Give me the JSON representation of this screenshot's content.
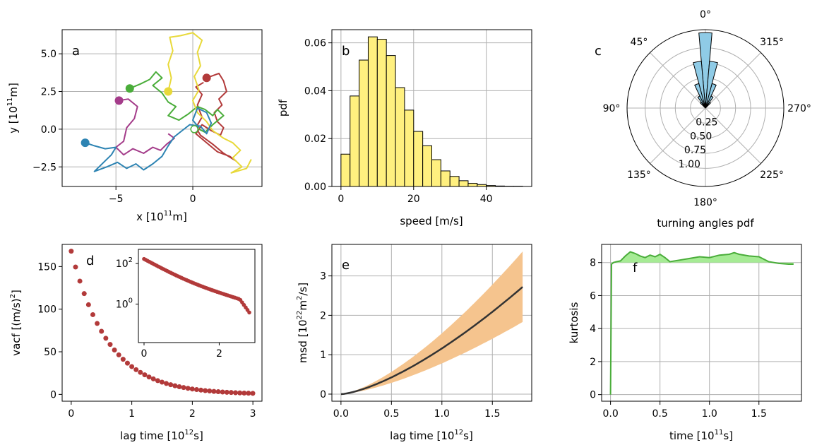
{
  "colors": {
    "red": "#b23a3a",
    "green": "#4aad3a",
    "yellow": "#e8d93a",
    "magenta": "#a43c8a",
    "blue": "#2e84b3",
    "hist_fill": "#fff07f",
    "rose_fill": "#8fcbe6",
    "band": "#f5c48e",
    "msd_line": "#333333",
    "vacf": "#b23a3a",
    "kurt_line": "#4aad3a",
    "kurt_fill": "#a6eb95"
  },
  "chart_data": [
    {
      "id": "a",
      "type": "line",
      "letter": "a",
      "xlabel": "x [10",
      "xlabel_sup": "11",
      "xlabel_unit": "m]",
      "ylabel": "y [10",
      "ylabel_sup": "11",
      "ylabel_unit": "m]",
      "xlim": [
        -8.5,
        4.5
      ],
      "ylim": [
        -3.8,
        6.6
      ],
      "xticks": [
        -5,
        0
      ],
      "xtick_labels": [
        "−5",
        "0"
      ],
      "yticks": [
        -2.5,
        0.0,
        2.5,
        5.0
      ],
      "ytick_labels": [
        "−2.5",
        "0.0",
        "2.5",
        "5.0"
      ],
      "grid": true,
      "series": [
        {
          "color": "red",
          "start": [
            0.9,
            3.4
          ],
          "points": [
            [
              0.9,
              3.4
            ],
            [
              1.7,
              3.7
            ],
            [
              2.0,
              3.2
            ],
            [
              2.2,
              2.5
            ],
            [
              1.7,
              2.0
            ],
            [
              1.9,
              1.6
            ],
            [
              1.4,
              1.1
            ],
            [
              1.6,
              0.5
            ],
            [
              2.0,
              0.1
            ],
            [
              1.8,
              -0.4
            ],
            [
              1.2,
              -0.1
            ],
            [
              0.6,
              0.3
            ],
            [
              0.2,
              -0.3
            ],
            [
              0.9,
              -0.9
            ],
            [
              1.6,
              -1.5
            ],
            [
              2.4,
              -1.8
            ],
            [
              2.8,
              -2.1
            ],
            [
              2.0,
              -1.6
            ],
            [
              1.3,
              -1.0
            ],
            [
              0.5,
              -0.4
            ],
            [
              0.2,
              0.1
            ],
            [
              0.6,
              0.8
            ],
            [
              0.3,
              1.6
            ],
            [
              0.6,
              2.3
            ],
            [
              0.2,
              2.8
            ],
            [
              0.7,
              3.1
            ]
          ]
        },
        {
          "color": "green",
          "start": [
            -4.1,
            2.7
          ],
          "points": [
            [
              -4.1,
              2.7
            ],
            [
              -3.4,
              3.0
            ],
            [
              -2.8,
              3.3
            ],
            [
              -2.4,
              3.8
            ],
            [
              -2.0,
              3.4
            ],
            [
              -2.6,
              2.9
            ],
            [
              -2.0,
              2.4
            ],
            [
              -1.6,
              1.8
            ],
            [
              -1.1,
              1.5
            ],
            [
              -1.6,
              0.9
            ],
            [
              -0.9,
              0.6
            ],
            [
              -0.3,
              1.0
            ],
            [
              0.3,
              1.5
            ],
            [
              0.8,
              1.3
            ],
            [
              1.3,
              0.9
            ],
            [
              1.6,
              1.3
            ],
            [
              2.0,
              0.9
            ],
            [
              1.3,
              0.3
            ],
            [
              0.8,
              -0.2
            ],
            [
              0.4,
              0.0
            ]
          ]
        },
        {
          "color": "yellow",
          "start": [
            -1.6,
            2.5
          ],
          "points": [
            [
              -1.6,
              2.5
            ],
            [
              -1.4,
              3.4
            ],
            [
              -1.6,
              4.3
            ],
            [
              -1.3,
              5.2
            ],
            [
              -1.5,
              6.1
            ],
            [
              -0.8,
              6.2
            ],
            [
              0.0,
              6.4
            ],
            [
              0.6,
              5.9
            ],
            [
              0.3,
              5.1
            ],
            [
              0.5,
              4.2
            ],
            [
              0.1,
              3.5
            ],
            [
              0.4,
              2.6
            ],
            [
              0.0,
              1.9
            ],
            [
              0.3,
              1.1
            ],
            [
              0.9,
              0.5
            ],
            [
              1.3,
              -0.1
            ],
            [
              2.0,
              -0.6
            ],
            [
              2.6,
              -0.9
            ],
            [
              3.1,
              -1.4
            ],
            [
              2.6,
              -1.9
            ],
            [
              3.2,
              -2.5
            ],
            [
              2.5,
              -2.9
            ],
            [
              3.5,
              -2.6
            ],
            [
              3.8,
              -2.0
            ]
          ]
        },
        {
          "color": "magenta",
          "start": [
            -4.8,
            1.9
          ],
          "points": [
            [
              -4.8,
              1.9
            ],
            [
              -4.2,
              2.0
            ],
            [
              -3.6,
              1.5
            ],
            [
              -3.8,
              0.7
            ],
            [
              -4.3,
              0.1
            ],
            [
              -4.5,
              -0.8
            ],
            [
              -5.0,
              -1.2
            ],
            [
              -4.5,
              -1.7
            ],
            [
              -3.9,
              -1.3
            ],
            [
              -3.2,
              -1.6
            ],
            [
              -2.6,
              -1.2
            ],
            [
              -2.1,
              -1.4
            ],
            [
              -1.7,
              -1.0
            ],
            [
              -1.2,
              -0.6
            ],
            [
              -1.6,
              -0.3
            ]
          ]
        },
        {
          "color": "blue",
          "start": [
            -7.0,
            -0.9
          ],
          "points": [
            [
              -7.0,
              -0.9
            ],
            [
              -6.4,
              -1.1
            ],
            [
              -5.7,
              -1.3
            ],
            [
              -5.0,
              -1.2
            ],
            [
              -5.3,
              -1.7
            ],
            [
              -5.8,
              -2.2
            ],
            [
              -6.4,
              -2.8
            ],
            [
              -5.6,
              -2.5
            ],
            [
              -4.9,
              -2.2
            ],
            [
              -4.3,
              -2.6
            ],
            [
              -3.7,
              -2.3
            ],
            [
              -3.2,
              -2.7
            ],
            [
              -2.6,
              -2.3
            ],
            [
              -2.0,
              -1.8
            ],
            [
              -1.6,
              -1.1
            ],
            [
              -1.2,
              -0.5
            ],
            [
              -0.7,
              -0.1
            ],
            [
              -0.2,
              0.3
            ],
            [
              0.5,
              0.2
            ],
            [
              0.9,
              -0.3
            ],
            [
              1.2,
              0.4
            ],
            [
              0.9,
              1.1
            ],
            [
              0.3,
              1.4
            ],
            [
              0.0,
              0.6
            ],
            [
              0.4,
              0.1
            ]
          ]
        }
      ],
      "end_marker": [
        0.1,
        0.0
      ]
    },
    {
      "id": "b",
      "type": "bar",
      "letter": "b",
      "xlabel": "speed [m/s]",
      "ylabel": "pdf",
      "xlim": [
        -2.5,
        52.5
      ],
      "ylim": [
        0,
        0.0655
      ],
      "xticks": [
        0,
        20,
        40
      ],
      "xtick_labels": [
        "0",
        "20",
        "40"
      ],
      "yticks": [
        0.0,
        0.02,
        0.04,
        0.06
      ],
      "ytick_labels": [
        "0.00",
        "0.02",
        "0.04",
        "0.06"
      ],
      "grid": true,
      "bin_edges_start": 0,
      "bin_width": 2.5,
      "values": [
        0.0135,
        0.0378,
        0.0528,
        0.0625,
        0.0615,
        0.0547,
        0.0413,
        0.0319,
        0.023,
        0.017,
        0.0112,
        0.0065,
        0.0042,
        0.0024,
        0.0013,
        0.0008,
        0.0004,
        0.0002,
        0.0001,
        0.0001
      ]
    },
    {
      "id": "c",
      "type": "bar",
      "letter": "c",
      "subtype": "polar",
      "xlabel": "turning angles pdf",
      "angle_labels": [
        {
          "deg": 0,
          "text": "0°"
        },
        {
          "deg": 45,
          "text": "45°"
        },
        {
          "deg": 90,
          "text": "90°"
        },
        {
          "deg": 135,
          "text": "135°"
        },
        {
          "deg": 180,
          "text": "180°"
        },
        {
          "deg": 225,
          "text": "225°"
        },
        {
          "deg": 270,
          "text": "270°"
        },
        {
          "deg": 315,
          "text": "315°"
        }
      ],
      "rmax": 1.3,
      "rticks": [
        0.25,
        0.5,
        0.75,
        1.0
      ],
      "rtick_labels": [
        "0.25",
        "0.50",
        "0.75",
        "1.00"
      ],
      "bar_angles_deg": [
        0,
        10,
        20,
        30,
        40,
        320,
        330,
        340,
        350
      ],
      "bar_width_deg": 10,
      "values": [
        1.25,
        0.78,
        0.42,
        0.22,
        0.12,
        0.12,
        0.22,
        0.42,
        0.78
      ]
    },
    {
      "id": "d",
      "type": "scatter",
      "letter": "d",
      "xlabel": "lag time [10",
      "xlabel_sup": "12",
      "xlabel_unit": "s]",
      "ylabel": "vacf [(m/s)",
      "ylabel_sup": "2",
      "ylabel_unit": "]",
      "xlim": [
        -0.15,
        3.15
      ],
      "ylim": [
        -8,
        176
      ],
      "xticks": [
        0,
        1,
        2,
        3
      ],
      "xtick_labels": [
        "0",
        "1",
        "2",
        "3"
      ],
      "yticks": [
        0,
        50,
        100,
        150
      ],
      "ytick_labels": [
        "0",
        "50",
        "100",
        "150"
      ],
      "grid": false,
      "x_start": 0,
      "x_step": 0.0714,
      "count": 43,
      "y0": 168,
      "decay": 0.61,
      "inset": {
        "xlim": [
          -0.15,
          2.95
        ],
        "ylim_log": [
          -1.9,
          2.7
        ],
        "xticks": [
          0,
          2
        ],
        "xtick_labels": [
          "0",
          "2"
        ],
        "yticks_log": [
          0,
          2
        ],
        "ytick_base": "10",
        "ytick_exps": [
          "0",
          "2"
        ],
        "end_value": 0.03
      }
    },
    {
      "id": "e",
      "type": "area",
      "letter": "e",
      "xlabel": "lag time [10",
      "xlabel_sup": "12",
      "xlabel_unit": "s]",
      "ylabel": "msd [10",
      "ylabel_sup": "22",
      "ylabel_unit": "m",
      "ylabel_sup2": "2",
      "ylabel_unit2": "/s]",
      "xlim": [
        -0.09,
        1.89
      ],
      "ylim": [
        -0.18,
        3.8
      ],
      "xticks": [
        0,
        0.5,
        1.0,
        1.5
      ],
      "xtick_labels": [
        "0.0",
        "0.5",
        "1.0",
        "1.5"
      ],
      "yticks": [
        0,
        1,
        2,
        3
      ],
      "ytick_labels": [
        "0",
        "1",
        "2",
        "3"
      ],
      "grid": true,
      "x_max": 1.8,
      "mean_end": 2.72,
      "upper_end": 3.62,
      "lower_end": 1.83,
      "exponent": 1.45
    },
    {
      "id": "f",
      "type": "area",
      "letter": "f",
      "xlabel": "time [10",
      "xlabel_sup": "11",
      "xlabel_unit": "s]",
      "ylabel": "kurtosis",
      "xlim": [
        -0.09,
        1.93
      ],
      "ylim": [
        -0.4,
        9.1
      ],
      "xticks": [
        0,
        0.5,
        1.0,
        1.5
      ],
      "xtick_labels": [
        "0.0",
        "0.5",
        "1.0",
        "1.5"
      ],
      "yticks": [
        0,
        2,
        4,
        6,
        8
      ],
      "ytick_labels": [
        "0",
        "2",
        "4",
        "6",
        "8"
      ],
      "grid": true,
      "baseline": 8.0,
      "x": [
        0.0,
        0.01,
        0.03,
        0.06,
        0.1,
        0.15,
        0.2,
        0.25,
        0.3,
        0.35,
        0.4,
        0.45,
        0.5,
        0.55,
        0.6,
        0.7,
        0.8,
        0.9,
        1.0,
        1.1,
        1.2,
        1.25,
        1.3,
        1.4,
        1.5,
        1.6,
        1.7,
        1.8,
        1.85
      ],
      "y": [
        0.0,
        7.9,
        8.0,
        8.05,
        8.1,
        8.4,
        8.65,
        8.55,
        8.4,
        8.3,
        8.45,
        8.35,
        8.5,
        8.3,
        8.05,
        8.15,
        8.25,
        8.35,
        8.3,
        8.45,
        8.5,
        8.6,
        8.5,
        8.4,
        8.35,
        8.05,
        7.95,
        7.9,
        7.9
      ]
    }
  ]
}
